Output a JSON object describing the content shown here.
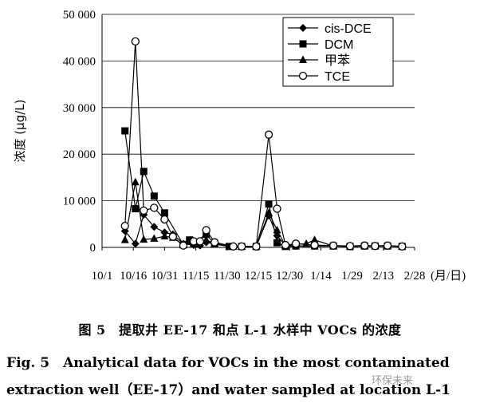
{
  "chart_data": {
    "type": "line",
    "title": "",
    "xlabel": "",
    "ylabel": "浓度 (μg/L)",
    "x_unit": "(月/日)",
    "x_ticks": [
      "10/1",
      "10/16",
      "10/31",
      "11/15",
      "11/30",
      "12/15",
      "12/30",
      "1/14",
      "1/29",
      "2/13",
      "2/28"
    ],
    "y_ticks": [
      "0",
      "10 000",
      "20 000",
      "30 000",
      "40 000",
      "50 000"
    ],
    "ylim": [
      0,
      50000
    ],
    "legend_position": "top-right",
    "series": [
      {
        "name": "cis-DCE",
        "marker": "diamond-filled",
        "points": [
          [
            "10/12",
            3500
          ],
          [
            "10/17",
            800
          ],
          [
            "10/21",
            7000
          ],
          [
            "10/26",
            4400
          ],
          [
            "10/31",
            3200
          ],
          [
            "11/4",
            2800
          ],
          [
            "11/9",
            800
          ],
          [
            "11/14",
            500
          ],
          [
            "11/17",
            400
          ],
          [
            "11/20",
            1100
          ],
          [
            "11/24",
            800
          ],
          [
            "12/3",
            200
          ],
          [
            "12/7",
            200
          ],
          [
            "12/14",
            200
          ],
          [
            "12/20",
            6800
          ],
          [
            "12/24",
            2500
          ],
          [
            "12/28",
            400
          ],
          [
            "1/2",
            300
          ],
          [
            "1/11",
            300
          ],
          [
            "1/20",
            300
          ],
          [
            "1/28",
            200
          ],
          [
            "2/4",
            300
          ],
          [
            "2/9",
            300
          ],
          [
            "2/15",
            300
          ],
          [
            "2/22",
            200
          ]
        ]
      },
      {
        "name": "DCM",
        "marker": "square-filled",
        "points": [
          [
            "10/12",
            25000
          ],
          [
            "10/17",
            8300
          ],
          [
            "10/21",
            16300
          ],
          [
            "10/26",
            11000
          ],
          [
            "10/31",
            7400
          ],
          [
            "11/9",
            600
          ],
          [
            "11/12",
            1600
          ],
          [
            "11/14",
            900
          ],
          [
            "11/20",
            2800
          ],
          [
            "11/24",
            700
          ],
          [
            "12/1",
            200
          ],
          [
            "12/7",
            200
          ],
          [
            "12/14",
            200
          ],
          [
            "12/20",
            9300
          ],
          [
            "12/24",
            1000
          ],
          [
            "12/28",
            200
          ],
          [
            "1/2",
            300
          ],
          [
            "1/11",
            300
          ],
          [
            "1/20",
            300
          ],
          [
            "1/28",
            200
          ],
          [
            "2/4",
            300
          ],
          [
            "2/9",
            300
          ],
          [
            "2/15",
            300
          ],
          [
            "2/22",
            200
          ]
        ]
      },
      {
        "name": "甲苯",
        "marker": "triangle-filled",
        "points": [
          [
            "10/12",
            1600
          ],
          [
            "10/17",
            14000
          ],
          [
            "10/21",
            1700
          ],
          [
            "10/26",
            1900
          ],
          [
            "10/31",
            2400
          ],
          [
            "11/4",
            2100
          ],
          [
            "11/9",
            500
          ],
          [
            "11/14",
            900
          ],
          [
            "11/17",
            600
          ],
          [
            "11/20",
            1600
          ],
          [
            "11/24",
            800
          ],
          [
            "12/3",
            200
          ],
          [
            "12/7",
            200
          ],
          [
            "12/14",
            200
          ],
          [
            "12/20",
            7400
          ],
          [
            "12/24",
            3700
          ],
          [
            "12/28",
            400
          ],
          [
            "1/2",
            600
          ],
          [
            "1/7",
            800
          ],
          [
            "1/11",
            1600
          ],
          [
            "1/20",
            300
          ],
          [
            "1/28",
            300
          ],
          [
            "2/4",
            400
          ],
          [
            "2/9",
            300
          ],
          [
            "2/15",
            400
          ],
          [
            "2/22",
            200
          ]
        ]
      },
      {
        "name": "TCE",
        "marker": "circle-open",
        "points": [
          [
            "10/12",
            4600
          ],
          [
            "10/17",
            44200
          ],
          [
            "10/21",
            7900
          ],
          [
            "10/26",
            8500
          ],
          [
            "10/31",
            6000
          ],
          [
            "11/4",
            2300
          ],
          [
            "11/9",
            400
          ],
          [
            "11/14",
            1300
          ],
          [
            "11/17",
            1300
          ],
          [
            "11/20",
            3700
          ],
          [
            "11/24",
            1100
          ],
          [
            "12/3",
            200
          ],
          [
            "12/7",
            200
          ],
          [
            "12/14",
            200
          ],
          [
            "12/20",
            24200
          ],
          [
            "12/24",
            8300
          ],
          [
            "12/28",
            500
          ],
          [
            "1/2",
            800
          ],
          [
            "1/11",
            500
          ],
          [
            "1/20",
            400
          ],
          [
            "1/28",
            300
          ],
          [
            "2/4",
            400
          ],
          [
            "2/9",
            300
          ],
          [
            "2/15",
            400
          ],
          [
            "2/22",
            200
          ]
        ]
      }
    ]
  },
  "captions": {
    "chinese": "图 5　提取井 EE-17 和点 L-1 水样中 VOCs 的浓度",
    "english_line1": "Fig. 5　Analytical data for VOCs in the most contaminated",
    "english_line2": "extraction well（EE-17）and water sampled at location L-1"
  },
  "watermark": "环保未来"
}
